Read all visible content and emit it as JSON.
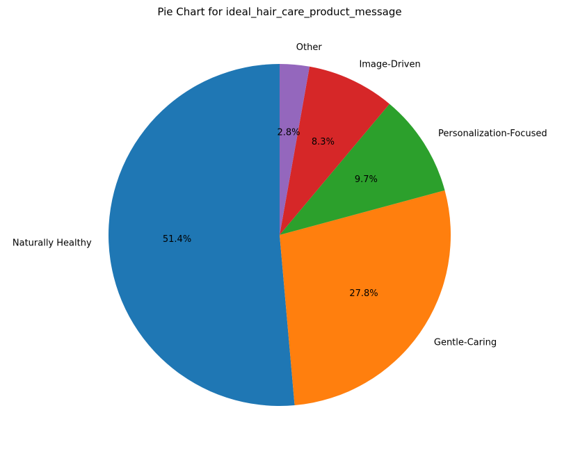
{
  "chart_data": {
    "type": "pie",
    "title": "Pie Chart for ideal_hair_care_product_message",
    "start_angle_deg": 90,
    "direction": "counterclockwise",
    "slices": [
      {
        "label": "Naturally Healthy",
        "value": 51.4,
        "pct_label": "51.4%",
        "color": "#1f77b4"
      },
      {
        "label": "Gentle-Caring",
        "value": 27.8,
        "pct_label": "27.8%",
        "color": "#ff7f0e"
      },
      {
        "label": "Personalization-Focused",
        "value": 9.7,
        "pct_label": "9.7%",
        "color": "#2ca02c"
      },
      {
        "label": "Image-Driven",
        "value": 8.3,
        "pct_label": "8.3%",
        "color": "#d62728"
      },
      {
        "label": "Other",
        "value": 2.8,
        "pct_label": "2.8%",
        "color": "#9467bd"
      }
    ]
  }
}
